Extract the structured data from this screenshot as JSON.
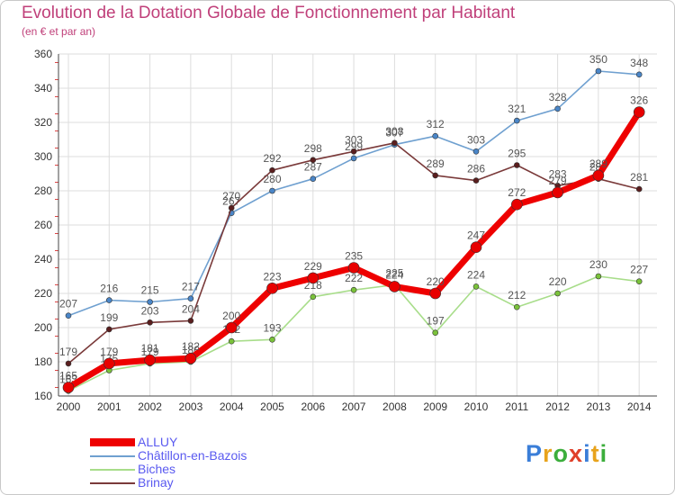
{
  "header": {
    "title": "Evolution de la Dotation Globale de Fonctionnement par Habitant",
    "subtitle": "(en € et par an)"
  },
  "brand": {
    "letters": [
      "P",
      "r",
      "o",
      "x",
      "i",
      "t",
      "i"
    ],
    "colors": [
      "#3a7ed8",
      "#e8a31c",
      "#3cae3c",
      "#e0402a",
      "#3a7ed8",
      "#e8a31c",
      "#3cae3c"
    ]
  },
  "chart_data": {
    "type": "line",
    "title": "Evolution de la Dotation Globale de Fonctionnement par Habitant",
    "subtitle": "(en € et par an)",
    "xlabel": "",
    "ylabel": "",
    "x": [
      "2000",
      "2001",
      "2002",
      "2003",
      "2004",
      "2005",
      "2006",
      "2007",
      "2008",
      "2009",
      "2010",
      "2011",
      "2012",
      "2013",
      "2014"
    ],
    "ylim": [
      160,
      360
    ],
    "yticks": [
      "160",
      "180",
      "200",
      "220",
      "240",
      "260",
      "280",
      "300",
      "320",
      "340",
      "360"
    ],
    "grid": true,
    "legend_position": "bottom-left",
    "series": [
      {
        "name": "Châtillon-en-Bazois",
        "color": "#6fa0d0",
        "marker": "#4a86c8",
        "width": 1.6,
        "r": 3,
        "values": [
          207,
          216,
          215,
          217,
          267,
          280,
          287,
          299,
          307,
          312,
          303,
          321,
          328,
          350,
          348
        ],
        "labels": [
          "207",
          "216",
          "215",
          "217",
          "267",
          "280",
          "287",
          "299",
          "307",
          "312",
          "303",
          "321",
          "328",
          "350",
          "348"
        ]
      },
      {
        "name": "Brinay",
        "color": "#7a3a3a",
        "marker": "#5a1e1e",
        "width": 1.6,
        "r": 3,
        "values": [
          179,
          199,
          203,
          204,
          270,
          292,
          298,
          303,
          308,
          289,
          286,
          295,
          283,
          287,
          281
        ],
        "labels": [
          "179",
          "199",
          "203",
          "204",
          "270",
          "292",
          "298",
          "303",
          "308",
          "289",
          "286",
          "295",
          "283",
          "287",
          "281"
        ]
      },
      {
        "name": "Biches",
        "color": "#a8dd8a",
        "marker": "#7ac23a",
        "width": 1.6,
        "r": 3,
        "values": [
          163,
          175,
          179,
          180,
          192,
          193,
          218,
          222,
          225,
          197,
          224,
          212,
          220,
          230,
          227
        ],
        "labels": [
          "163",
          "175",
          "179",
          "180",
          "192",
          "193",
          "218",
          "222",
          "225",
          "197",
          "224",
          "212",
          "220",
          "230",
          "227"
        ]
      },
      {
        "name": "ALLUY",
        "color": "#ee0000",
        "marker": "#e80000",
        "width": 7,
        "r": 6,
        "values": [
          165,
          179,
          181,
          182,
          200,
          223,
          229,
          235,
          224,
          220,
          247,
          272,
          279,
          289,
          326
        ],
        "labels": [
          "165",
          "179",
          "181",
          "182",
          "200",
          "223",
          "229",
          "235",
          "224",
          "220",
          "247",
          "272",
          "279",
          "289",
          "326"
        ]
      }
    ],
    "legend": [
      {
        "name": "ALLUY",
        "color": "#ee0000",
        "thickness": 9
      },
      {
        "name": "Châtillon-en-Bazois",
        "color": "#6fa0d0",
        "thickness": 2
      },
      {
        "name": "Biches",
        "color": "#a8dd8a",
        "thickness": 2
      },
      {
        "name": "Brinay",
        "color": "#7a3a3a",
        "thickness": 2
      }
    ]
  }
}
